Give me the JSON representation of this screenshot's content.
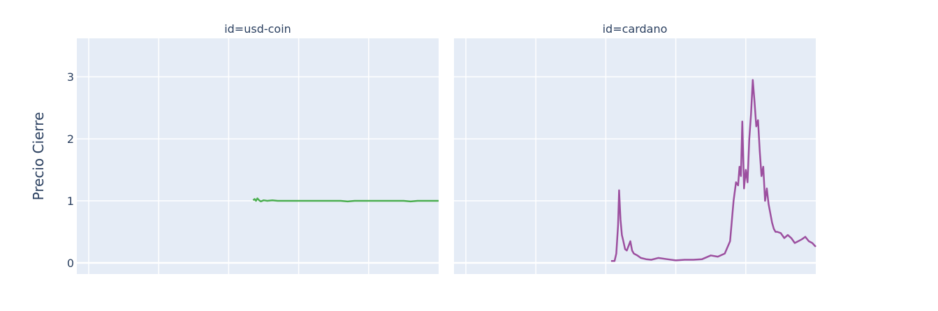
{
  "chart_data": {
    "type": "line",
    "ylabel": "Precio Cierre",
    "ylim": [
      -0.18,
      3.62
    ],
    "yticks": [
      0,
      1,
      2,
      3
    ],
    "grid": true,
    "facets": [
      {
        "title": "id=usd-coin",
        "color": "#4caf50",
        "series": [
          {
            "x": [
              0.47,
              0.474,
              0.478,
              0.482,
              0.487,
              0.492,
              0.5,
              0.51,
              0.525,
              0.54,
              0.56,
              0.58,
              0.6,
              0.62,
              0.64,
              0.66,
              0.68,
              0.7,
              0.72,
              0.74,
              0.76,
              0.78,
              0.8,
              0.82,
              0.84,
              0.86,
              0.88,
              0.9,
              0.92,
              0.94,
              0.96,
              0.98,
              1.0
            ],
            "y": [
              1.01,
              1.03,
              1.0,
              1.04,
              1.01,
              0.99,
              1.01,
              1.0,
              1.01,
              1.0,
              1.0,
              1.0,
              1.0,
              1.0,
              1.0,
              1.0,
              1.0,
              1.0,
              1.0,
              0.99,
              1.0,
              1.0,
              1.0,
              1.0,
              1.0,
              1.0,
              1.0,
              1.0,
              0.99,
              1.0,
              1.0,
              1.0,
              1.0
            ]
          }
        ]
      },
      {
        "title": "id=cardano",
        "color": "#9c4f9f",
        "series": [
          {
            "x": [
              0.415,
              0.425,
              0.43,
              0.435,
              0.438,
              0.442,
              0.446,
              0.45,
              0.455,
              0.46,
              0.47,
              0.475,
              0.48,
              0.49,
              0.5,
              0.515,
              0.53,
              0.55,
              0.575,
              0.6,
              0.625,
              0.65,
              0.675,
              0.7,
              0.72,
              0.74,
              0.755,
              0.765,
              0.772,
              0.778,
              0.782,
              0.786,
              0.79,
              0.795,
              0.8,
              0.805,
              0.81,
              0.815,
              0.82,
              0.825,
              0.83,
              0.835,
              0.84,
              0.845,
              0.85,
              0.855,
              0.86,
              0.865,
              0.87,
              0.875,
              0.88,
              0.885,
              0.89,
              0.9,
              0.91,
              0.92,
              0.93,
              0.94,
              0.95,
              0.96,
              0.97,
              0.98,
              0.99,
              1.0
            ],
            "y": [
              0.03,
              0.03,
              0.15,
              0.6,
              1.17,
              0.7,
              0.45,
              0.35,
              0.22,
              0.2,
              0.35,
              0.2,
              0.15,
              0.12,
              0.08,
              0.06,
              0.05,
              0.08,
              0.06,
              0.04,
              0.05,
              0.05,
              0.06,
              0.12,
              0.1,
              0.15,
              0.35,
              1.0,
              1.3,
              1.25,
              1.55,
              1.4,
              2.28,
              1.2,
              1.5,
              1.3,
              2.0,
              2.4,
              2.95,
              2.6,
              2.2,
              2.3,
              1.8,
              1.4,
              1.55,
              1.0,
              1.2,
              0.95,
              0.8,
              0.65,
              0.55,
              0.5,
              0.5,
              0.48,
              0.4,
              0.45,
              0.4,
              0.32,
              0.35,
              0.38,
              0.42,
              0.35,
              0.32,
              0.26
            ]
          }
        ]
      }
    ]
  }
}
